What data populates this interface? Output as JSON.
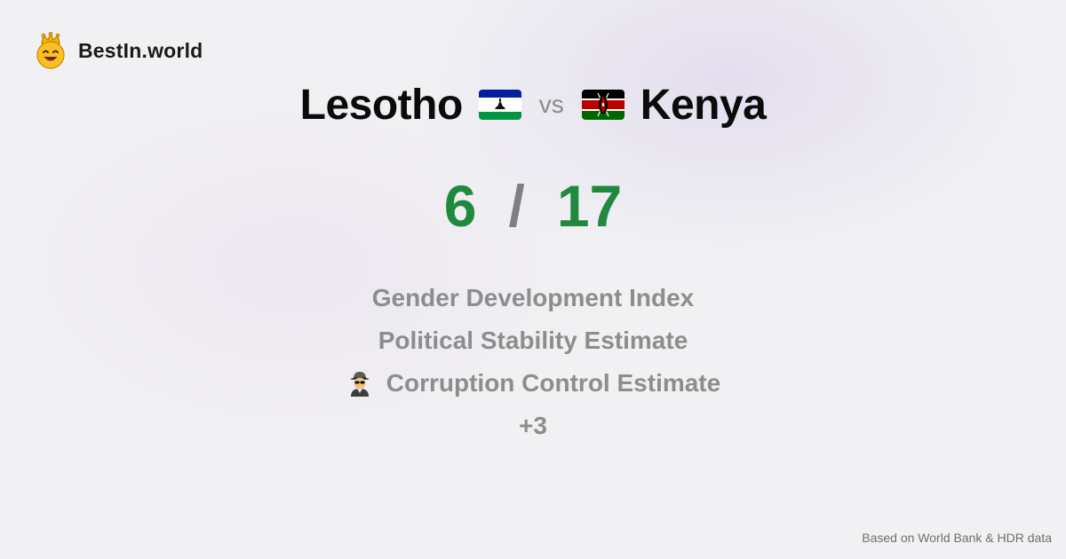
{
  "brand": {
    "name": "BestIn.world",
    "logo_icon": "crowned-smiley-icon"
  },
  "comparison": {
    "left": {
      "name": "Lesotho",
      "flag_icon": "lesotho-flag-icon"
    },
    "separator": "vs",
    "right": {
      "name": "Kenya",
      "flag_icon": "kenya-flag-icon"
    }
  },
  "score": {
    "left": "6",
    "separator": "/",
    "right": "17",
    "color": "#1f8a3e"
  },
  "metrics": [
    {
      "label": "Gender Development Index"
    },
    {
      "label": "Political Stability Estimate"
    },
    {
      "label": "Corruption Control Estimate",
      "icon": "detective-icon"
    }
  ],
  "more": "+3",
  "footer": {
    "source": "Based on World Bank & HDR data"
  }
}
